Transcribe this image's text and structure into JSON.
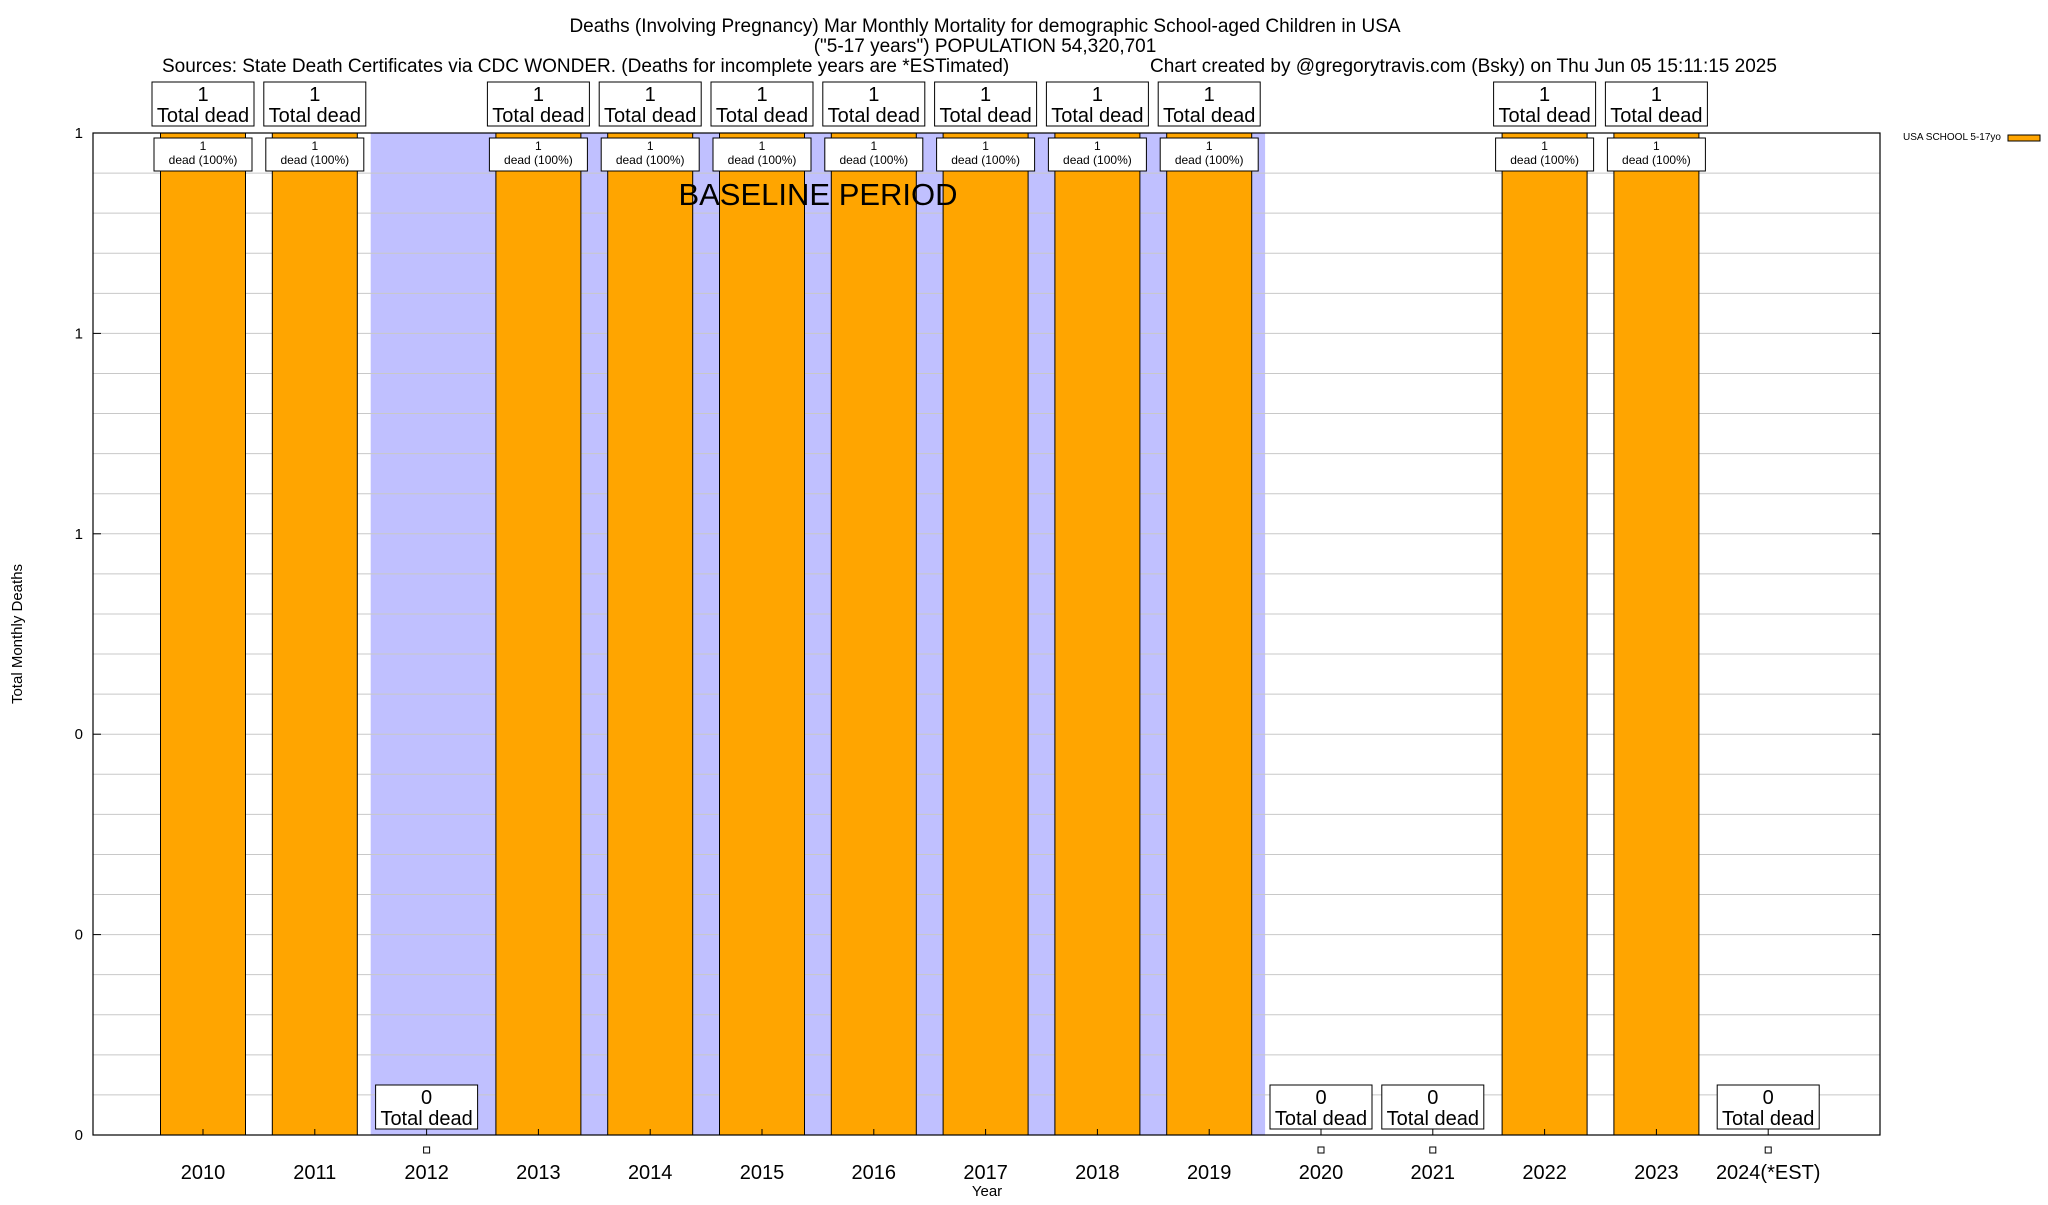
{
  "chart_data": {
    "type": "bar",
    "title": "Deaths (Involving Pregnancy) Mar Monthly Mortality for demographic School-aged Children in USA",
    "subtitle": "(\"5-17 years\") POPULATION 54,320,701",
    "source_line": "Sources: State Death Certificates via CDC WONDER. (Deaths for incomplete years are *ESTimated)",
    "credit_line": "Chart created by @gregorytravis.com (Bsky) on Thu Jun 05 15:11:15 2025",
    "xlabel": "Year",
    "ylabel": "Total Monthly Deaths",
    "categories": [
      "2010",
      "2011",
      "2012",
      "2013",
      "2014",
      "2015",
      "2016",
      "2017",
      "2018",
      "2019",
      "2020",
      "2021",
      "2022",
      "2023",
      "2024(*EST)"
    ],
    "series": [
      {
        "name": "USA SCHOOL 5-17yo",
        "color": "#ffa500",
        "values": [
          1,
          1,
          0,
          1,
          1,
          1,
          1,
          1,
          1,
          1,
          0,
          0,
          1,
          1,
          0
        ]
      }
    ],
    "total_labels": [
      "1\nTotal dead",
      "1\nTotal dead",
      "0\nTotal dead",
      "1\nTotal dead",
      "1\nTotal dead",
      "1\nTotal dead",
      "1\nTotal dead",
      "1\nTotal dead",
      "1\nTotal dead",
      "1\nTotal dead",
      "0\nTotal dead",
      "0\nTotal dead",
      "1\nTotal dead",
      "1\nTotal dead",
      "0\nTotal dead"
    ],
    "segment_labels": [
      "1\ndead (100%)",
      "1\ndead (100%)",
      "",
      "1\ndead (100%)",
      "1\ndead (100%)",
      "1\ndead (100%)",
      "1\ndead (100%)",
      "1\ndead (100%)",
      "1\ndead (100%)",
      "1\ndead (100%)",
      "",
      "",
      "1\ndead (100%)",
      "1\ndead (100%)",
      ""
    ],
    "ylim": [
      0,
      1
    ],
    "ytick_values": [
      0,
      0.2,
      0.4,
      0.6,
      0.8,
      1
    ],
    "ytick_labels": [
      "0",
      "0",
      "0",
      "1",
      "1",
      "1"
    ],
    "grid": true,
    "minor_gridlines_per_major": 5,
    "baseline_period": {
      "label": "BASELINE PERIOD",
      "from": "2012",
      "to": "2019",
      "color": "#c0c0ff"
    },
    "legend_position": "top-right"
  }
}
